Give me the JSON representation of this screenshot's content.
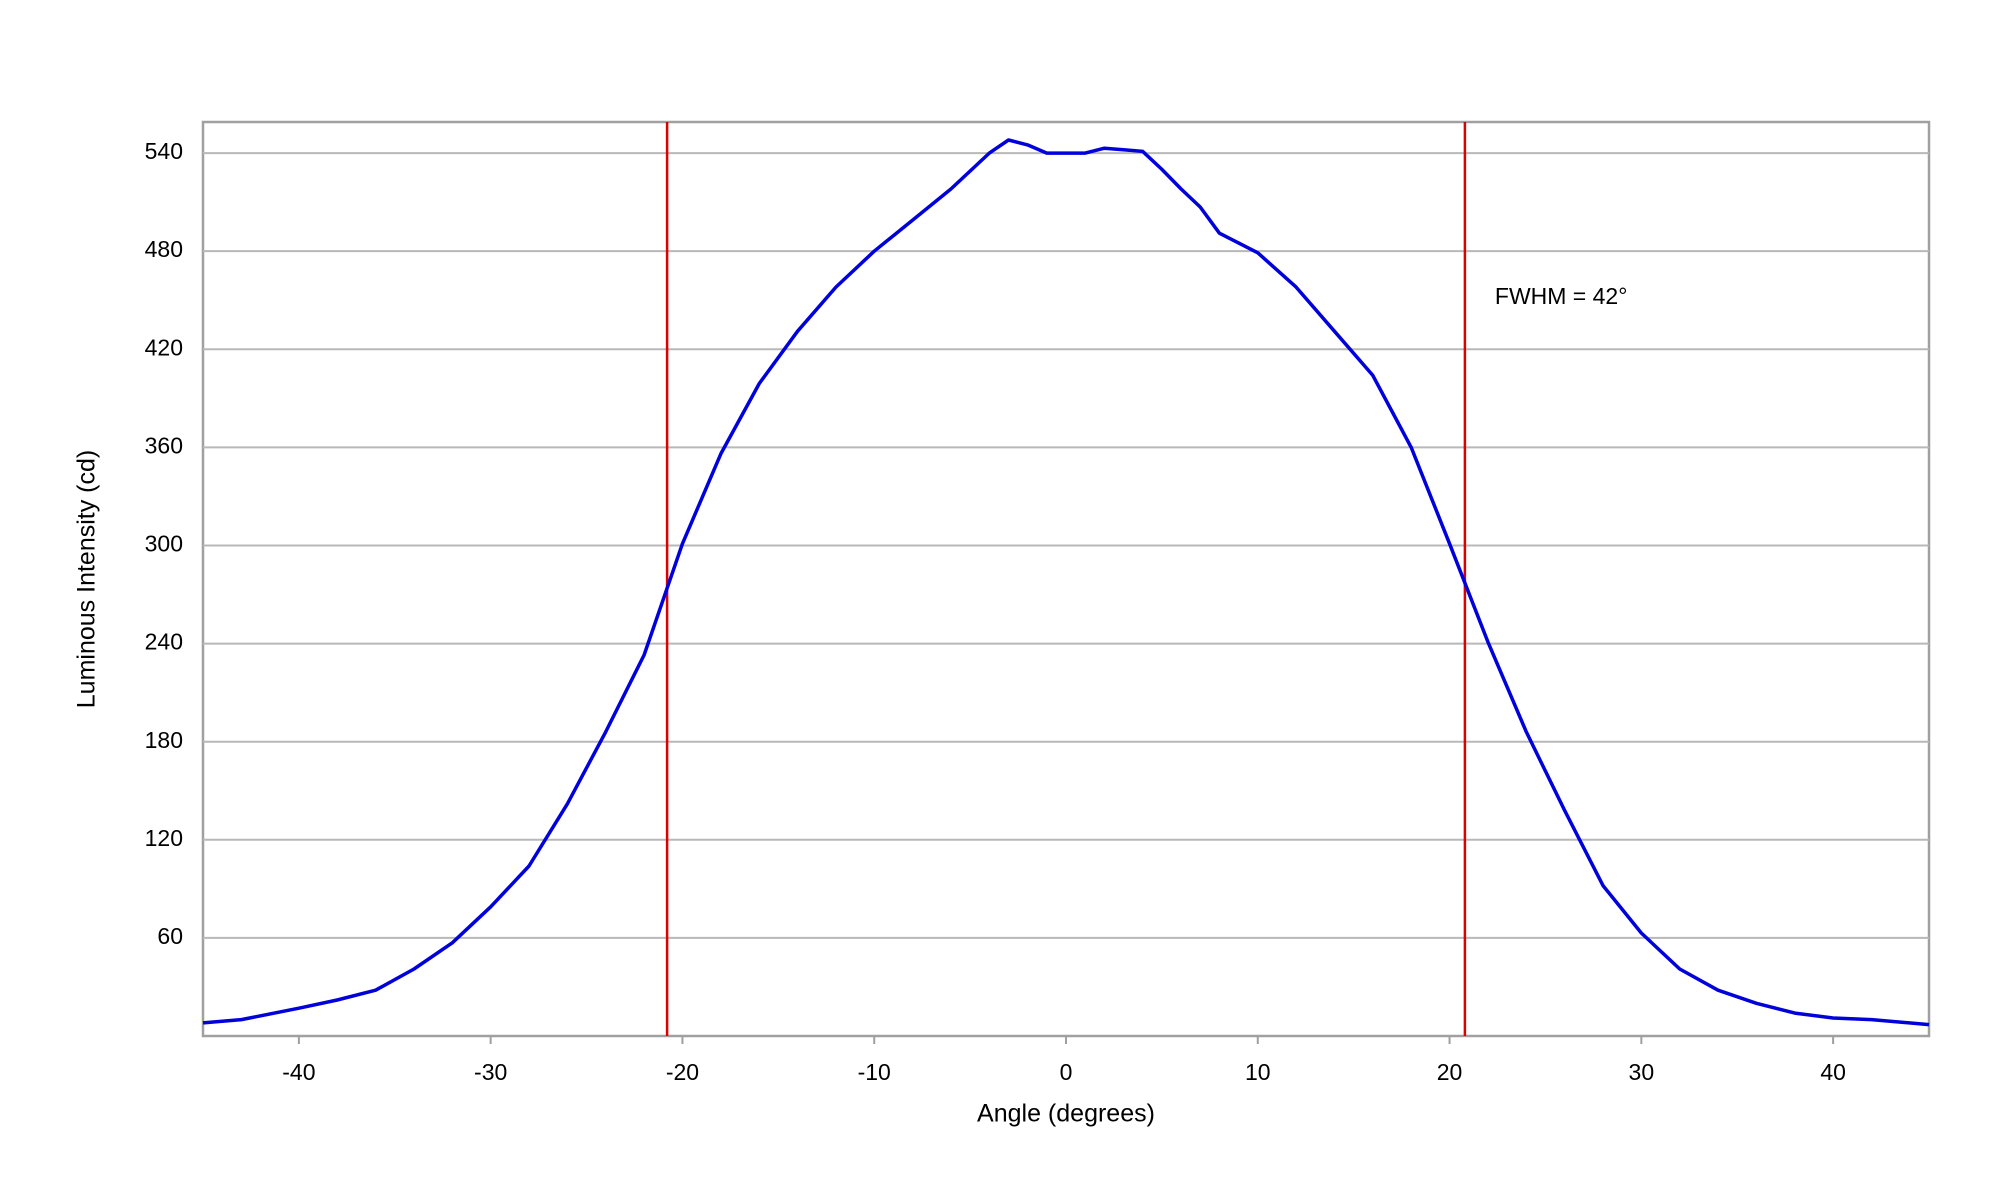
{
  "chart_data": {
    "type": "line",
    "x_label": "Angle (degrees)",
    "y_label": "Luminous Intensity (cd)",
    "annotation": "FWHM = 42°",
    "x": [
      -45,
      -43,
      -40,
      -38,
      -36,
      -34,
      -32,
      -30,
      -28,
      -26,
      -24,
      -22,
      -20,
      -18,
      -16,
      -14,
      -12,
      -10,
      -8,
      -6,
      -4,
      -3,
      -2,
      -1,
      0,
      1,
      2,
      3,
      4,
      5,
      6,
      7,
      8,
      10,
      12,
      14,
      16,
      18,
      20,
      22,
      24,
      26,
      28,
      30,
      32,
      34,
      36,
      38,
      40,
      42,
      45
    ],
    "series": [
      {
        "color": "#0000dd",
        "values": [
          8,
          10,
          17,
          22,
          28,
          41,
          57,
          79,
          104,
          142,
          186,
          233,
          301,
          356,
          399,
          431,
          458,
          480,
          499,
          518,
          540,
          548,
          545,
          540,
          540,
          540,
          543,
          542,
          541,
          530,
          518,
          507,
          491,
          479,
          458,
          431,
          404,
          360,
          301,
          241,
          186,
          138,
          92,
          63,
          41,
          28,
          20,
          14,
          11,
          10,
          7
        ]
      }
    ],
    "vlines": [
      -20.8,
      20.8
    ],
    "vline_color": "#dd0000",
    "xlim": [
      -45,
      45
    ],
    "ylim": [
      0,
      559
    ],
    "xticks": [
      -40,
      -30,
      -20,
      -10,
      0,
      10,
      20,
      30,
      40
    ],
    "yticks": [
      60,
      120,
      180,
      240,
      300,
      360,
      420,
      480,
      540
    ],
    "grid": true
  }
}
